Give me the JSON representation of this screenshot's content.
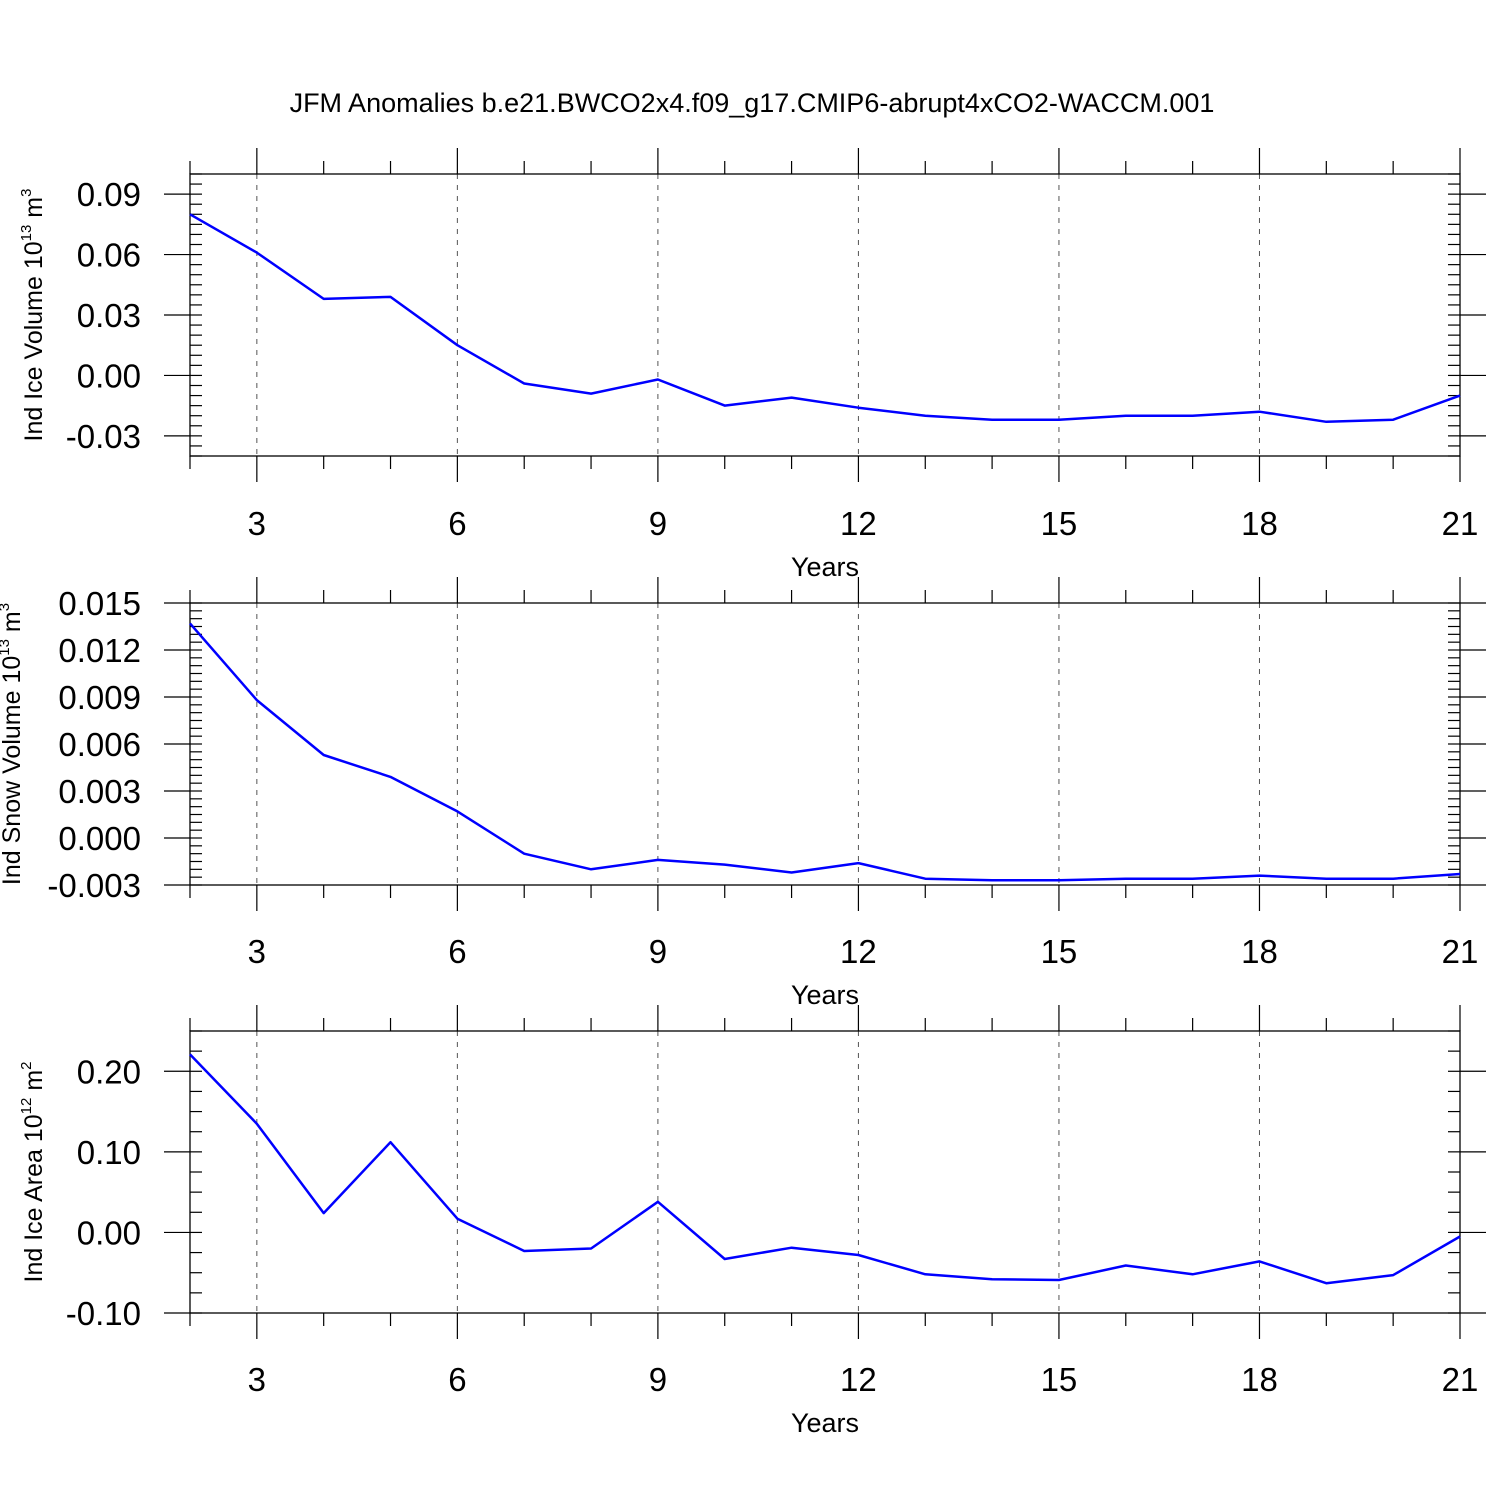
{
  "title": "JFM Anomalies b.e21.BWCO2x4.f09_g17.CMIP6-abrupt4xCO2-WACCM.001",
  "colors": {
    "series": "#0000ff",
    "grid": "#555555",
    "axis": "#000000"
  },
  "chart_data": [
    {
      "type": "line",
      "xlabel": "Years",
      "ylabel": {
        "main": "Ind Ice Volume 10",
        "exp": "13",
        "unit": " m",
        "unit_exp": "3"
      },
      "xlim": [
        2,
        21
      ],
      "ylim": [
        -0.04,
        0.1
      ],
      "xticks": [
        3,
        6,
        9,
        12,
        15,
        18,
        21
      ],
      "xtick_labels": [
        "3",
        "6",
        "9",
        "12",
        "15",
        "18",
        "21"
      ],
      "yticks": [
        -0.03,
        0.0,
        0.03,
        0.06,
        0.09
      ],
      "ytick_labels": [
        "-0.03",
        "0.00",
        "0.03",
        "0.06",
        "0.09"
      ],
      "grid": "vertical dashed at major x ticks",
      "x": [
        2,
        3,
        4,
        5,
        6,
        7,
        8,
        9,
        10,
        11,
        12,
        13,
        14,
        15,
        16,
        17,
        18,
        19,
        20,
        21
      ],
      "y": [
        0.08,
        0.061,
        0.038,
        0.039,
        0.015,
        -0.004,
        -0.009,
        -0.002,
        -0.015,
        -0.011,
        -0.016,
        -0.02,
        -0.022,
        -0.022,
        -0.02,
        -0.02,
        -0.018,
        -0.023,
        -0.022,
        -0.01
      ]
    },
    {
      "type": "line",
      "xlabel": "Years",
      "ylabel": {
        "main": "Ind Snow Volume 10",
        "exp": "13",
        "unit": " m",
        "unit_exp": "3"
      },
      "xlim": [
        2,
        21
      ],
      "ylim": [
        -0.003,
        0.015
      ],
      "xticks": [
        3,
        6,
        9,
        12,
        15,
        18,
        21
      ],
      "xtick_labels": [
        "3",
        "6",
        "9",
        "12",
        "15",
        "18",
        "21"
      ],
      "yticks": [
        -0.003,
        0.0,
        0.003,
        0.006,
        0.009,
        0.012,
        0.015
      ],
      "ytick_labels": [
        "-0.003",
        "0.000",
        "0.003",
        "0.006",
        "0.009",
        "0.012",
        "0.015"
      ],
      "grid": "vertical dashed at major x ticks",
      "x": [
        2,
        3,
        4,
        5,
        6,
        7,
        8,
        9,
        10,
        11,
        12,
        13,
        14,
        15,
        16,
        17,
        18,
        19,
        20,
        21
      ],
      "y": [
        0.0137,
        0.0088,
        0.0053,
        0.0039,
        0.0017,
        -0.001,
        -0.002,
        -0.0014,
        -0.0017,
        -0.0022,
        -0.0016,
        -0.0026,
        -0.0027,
        -0.0027,
        -0.0026,
        -0.0026,
        -0.0024,
        -0.0026,
        -0.0026,
        -0.0023
      ]
    },
    {
      "type": "line",
      "xlabel": "Years",
      "ylabel": {
        "main": "Ind Ice Area 10",
        "exp": "12",
        "unit": " m",
        "unit_exp": "2"
      },
      "xlim": [
        2,
        21
      ],
      "ylim": [
        -0.1,
        0.25
      ],
      "xticks": [
        3,
        6,
        9,
        12,
        15,
        18,
        21
      ],
      "xtick_labels": [
        "3",
        "6",
        "9",
        "12",
        "15",
        "18",
        "21"
      ],
      "yticks": [
        -0.1,
        0.0,
        0.1,
        0.2
      ],
      "ytick_labels": [
        "-0.10",
        "0.00",
        "0.10",
        "0.20"
      ],
      "grid": "vertical dashed at major x ticks",
      "x": [
        2,
        3,
        4,
        5,
        6,
        7,
        8,
        9,
        10,
        11,
        12,
        13,
        14,
        15,
        16,
        17,
        18,
        19,
        20,
        21
      ],
      "y": [
        0.221,
        0.135,
        0.024,
        0.112,
        0.017,
        -0.023,
        -0.02,
        0.038,
        -0.033,
        -0.019,
        -0.028,
        -0.052,
        -0.058,
        -0.059,
        -0.041,
        -0.052,
        -0.036,
        -0.063,
        -0.053,
        -0.005
      ]
    }
  ]
}
